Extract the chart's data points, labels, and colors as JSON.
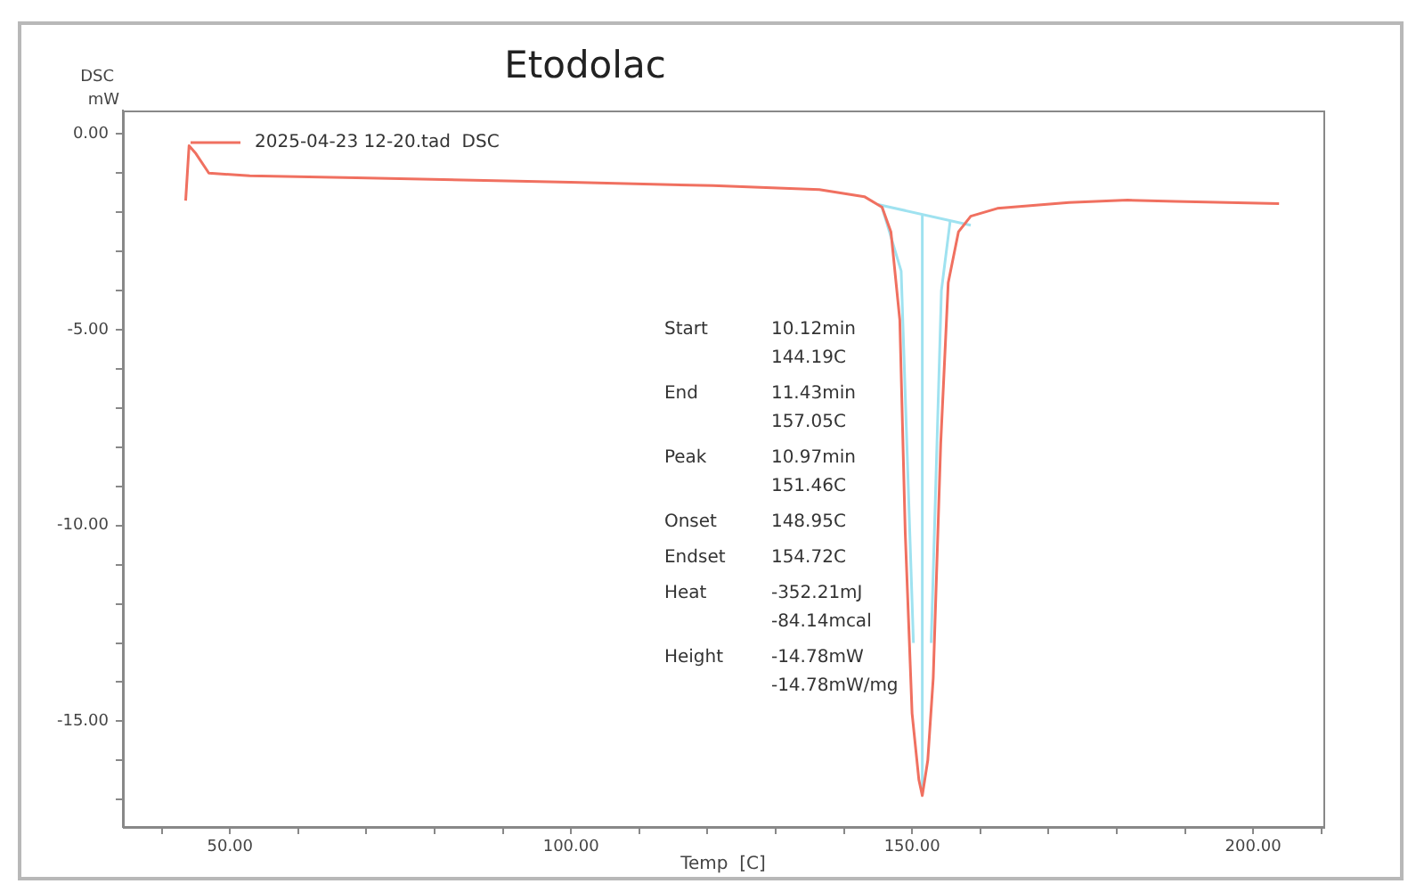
{
  "chart_data": {
    "type": "line",
    "title": "Etodolac",
    "xlabel": "Temp  [C]",
    "ylabel": "DSC\nmW",
    "xlim": [
      34.3,
      210.3
    ],
    "xticks": [
      {
        "value": 40,
        "label": null
      },
      {
        "value": 50,
        "label": "50.00"
      },
      {
        "value": 60,
        "label": null
      },
      {
        "value": 70,
        "label": null
      },
      {
        "value": 80,
        "label": null
      },
      {
        "value": 90,
        "label": null
      },
      {
        "value": 100,
        "label": "100.00"
      },
      {
        "value": 110,
        "label": null
      },
      {
        "value": 120,
        "label": null
      },
      {
        "value": 130,
        "label": null
      },
      {
        "value": 140,
        "label": null
      },
      {
        "value": 150,
        "label": "150.00"
      },
      {
        "value": 160,
        "label": null
      },
      {
        "value": 170,
        "label": null
      },
      {
        "value": 180,
        "label": null
      },
      {
        "value": 190,
        "label": null
      },
      {
        "value": 200,
        "label": "200.00"
      },
      {
        "value": 210,
        "label": null
      }
    ],
    "ylim": [
      -17.7,
      0.6
    ],
    "yticks": [
      {
        "value": 0,
        "label": "0.00"
      },
      {
        "value": -1,
        "label": null
      },
      {
        "value": -2,
        "label": null
      },
      {
        "value": -3,
        "label": null
      },
      {
        "value": -4,
        "label": null
      },
      {
        "value": -5,
        "label": "-5.00"
      },
      {
        "value": -6,
        "label": null
      },
      {
        "value": -7,
        "label": null
      },
      {
        "value": -8,
        "label": null
      },
      {
        "value": -9,
        "label": null
      },
      {
        "value": -10,
        "label": "-10.00"
      },
      {
        "value": -11,
        "label": null
      },
      {
        "value": -12,
        "label": null
      },
      {
        "value": -13,
        "label": null
      },
      {
        "value": -14,
        "label": null
      },
      {
        "value": -15,
        "label": "-15.00"
      },
      {
        "value": -16,
        "label": null
      },
      {
        "value": -17,
        "label": null
      }
    ],
    "grid": false,
    "legend": "top left",
    "marker": "none",
    "line_style": "solid",
    "series": [
      {
        "name": "2025-04-23 12-20.tad  DSC",
        "color": "#f07060",
        "x": [
          43.5,
          44.0,
          45.0,
          46.9,
          52.9,
          68.5,
          99.9,
          120.8,
          136.4,
          143.0,
          145.6,
          146.9,
          148.2,
          149.0,
          150.0,
          151.0,
          151.5,
          152.3,
          153.1,
          154.2,
          155.3,
          156.8,
          158.6,
          162.5,
          173.0,
          181.6,
          188.6,
          203.8
        ],
        "values": [
          -1.7,
          -0.3,
          -0.5,
          -1.0,
          -1.07,
          -1.12,
          -1.23,
          -1.32,
          -1.42,
          -1.6,
          -1.87,
          -2.5,
          -4.75,
          -10.2,
          -14.8,
          -16.5,
          -16.9,
          -16.0,
          -13.9,
          -7.9,
          -3.8,
          -2.5,
          -2.1,
          -1.9,
          -1.75,
          -1.69,
          -1.72,
          -1.78
        ]
      },
      {
        "color": "#9fe2f0",
        "x": [
          145.0,
          158.6
        ],
        "values": [
          -1.8,
          -2.33
        ]
      },
      {
        "color": "#9fe2f0",
        "x": [
          151.5,
          151.5
        ],
        "values": [
          -2.1,
          -16.7
        ]
      },
      {
        "color": "#9fe2f0",
        "x": [
          145.6,
          148.4,
          150.2,
          151.5,
          152.8,
          154.3,
          155.6
        ],
        "values": [
          -1.87,
          -3.5,
          -13,
          null,
          -13,
          -4,
          -2.2
        ]
      }
    ],
    "annotations": [
      "Start",
      "10.12min\n144.19C",
      "End",
      "11.43min\n157.05C",
      "Peak",
      "10.97min\n151.46C",
      "Onset",
      "148.95C",
      "Endset",
      "154.72C",
      "Heat",
      "-352.21mJ\n-84.14mcal",
      "Height",
      "-14.78mW\n-14.78mW/mg"
    ]
  }
}
